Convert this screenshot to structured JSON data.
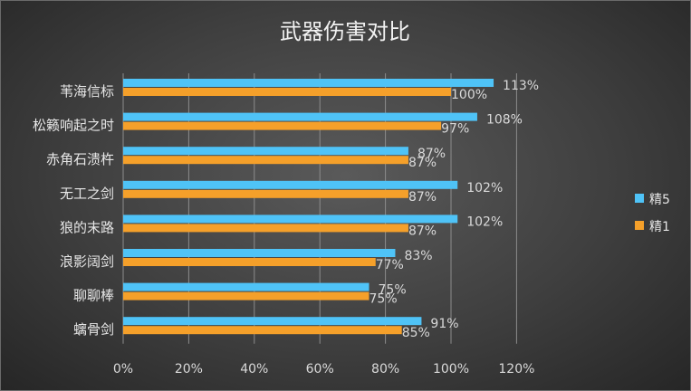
{
  "chart_data": {
    "type": "bar",
    "orientation": "horizontal",
    "title": "武器伤害对比",
    "xlabel": "",
    "ylabel": "",
    "categories": [
      "苇海信标",
      "松籁响起之时",
      "赤角石溃杵",
      "无工之剑",
      "狼的末路",
      "浪影阔剑",
      "聊聊棒",
      "螭骨剑"
    ],
    "series": [
      {
        "name": "精5",
        "color": "#4fc3f7",
        "values": [
          113,
          108,
          87,
          102,
          102,
          83,
          75,
          91
        ]
      },
      {
        "name": "精1",
        "color": "#f5a02a",
        "values": [
          100,
          97,
          87,
          87,
          87,
          77,
          75,
          85
        ]
      }
    ],
    "value_suffix": "%",
    "xlim": [
      0,
      120
    ],
    "x_ticks": [
      "0%",
      "20%",
      "40%",
      "60%",
      "80%",
      "100%",
      "120%"
    ],
    "grid": "vertical",
    "legend_position": "right"
  }
}
